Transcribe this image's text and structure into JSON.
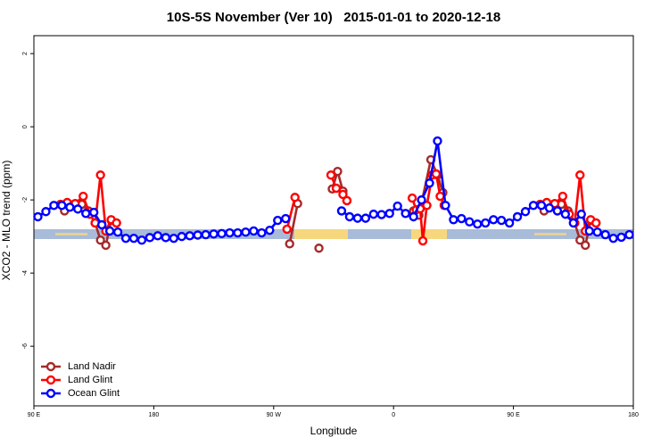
{
  "chart_data": {
    "type": "line",
    "title": "10S-5S November (Ver 10)   2015-01-01 to 2020-12-18",
    "x_label": "Longitude",
    "y_label": "XCO2 - MLO trend (ppm)",
    "xlim": [
      90,
      540
    ],
    "ylim": [
      -7.63,
      2.49
    ],
    "xticks": [
      {
        "value": 90,
        "label": "90 E"
      },
      {
        "value": 180,
        "label": "180"
      },
      {
        "value": 270,
        "label": "90 W"
      },
      {
        "value": 360,
        "label": "0"
      },
      {
        "value": 450,
        "label": "90 E"
      },
      {
        "value": 540,
        "label": "180"
      }
    ],
    "yticks": [
      2,
      0,
      -2,
      -4,
      -6
    ],
    "legend": "bottom-left",
    "series": [
      {
        "name": "Land Nadir",
        "color": "#a52a2a",
        "x": [
          113,
          120,
          126,
          131,
          136,
          140,
          144,
          148,
          152,
          null,
          282,
          288,
          null,
          304,
          null,
          314,
          318,
          322,
          325,
          null,
          375,
          379,
          388,
          393,
          397,
          null,
          473,
          480,
          486,
          491,
          496,
          500,
          504,
          508,
          512
        ],
        "values": [
          -2.3,
          -2.12,
          -2.12,
          -2.3,
          -2.63,
          -3.1,
          -3.24,
          -2.56,
          -2.63,
          null,
          -3.2,
          -2.1,
          null,
          -3.32,
          null,
          -1.7,
          -1.22,
          -1.76,
          -2.02,
          null,
          -2.3,
          -2.42,
          -0.9,
          -1.32,
          -1.8,
          null,
          -2.3,
          -2.12,
          -2.12,
          -2.3,
          -2.63,
          -3.1,
          -3.24,
          -2.56,
          -2.63
        ]
      },
      {
        "name": "Land Glint",
        "color": "#ff0000",
        "x": [
          110,
          115,
          121,
          127,
          132,
          136,
          140,
          144,
          148,
          152,
          null,
          280,
          286,
          null,
          313,
          317,
          322,
          325,
          null,
          374,
          377,
          380,
          382,
          385,
          389,
          392,
          395,
          398,
          null,
          470,
          475,
          481,
          487,
          492,
          496,
          500,
          504,
          508,
          512
        ],
        "values": [
          -2.12,
          -2.07,
          -2.1,
          -1.9,
          -2.39,
          -2.63,
          -1.32,
          -2.85,
          -2.54,
          -2.63,
          null,
          -2.8,
          -1.93,
          null,
          -1.32,
          -1.68,
          -1.85,
          -2.02,
          null,
          -1.95,
          -2.27,
          -2.24,
          -3.12,
          -2.15,
          -1.32,
          -1.29,
          -1.9,
          -2.15,
          null,
          -2.12,
          -2.07,
          -2.1,
          -1.9,
          -2.39,
          -2.63,
          -1.32,
          -2.85,
          -2.54,
          -2.63
        ]
      },
      {
        "name": "Ocean Glint",
        "color": "#0000ff",
        "x": [
          93,
          99,
          105,
          111,
          117,
          123,
          129,
          135,
          141,
          147,
          153,
          159,
          165,
          171,
          177,
          183,
          189,
          195,
          201,
          207,
          213,
          219,
          225,
          231,
          237,
          243,
          249,
          255,
          261,
          267,
          273,
          279,
          285,
          291,
          297,
          303,
          309,
          315,
          321,
          327,
          333,
          339,
          345,
          351,
          357,
          363,
          369,
          375,
          381,
          387,
          393,
          399,
          405,
          411,
          417,
          423,
          429,
          435,
          441,
          447,
          453,
          459,
          465,
          471,
          477,
          483,
          489,
          495,
          501,
          507,
          513,
          519,
          525,
          531,
          537
        ],
        "values": [
          -2.46,
          -2.32,
          -2.15,
          -2.15,
          -2.2,
          -2.25,
          -2.37,
          -2.34,
          -2.68,
          -2.85,
          -2.88,
          -3.05,
          -3.05,
          -3.1,
          -3.03,
          -2.98,
          -3.03,
          -3.05,
          -3.0,
          -2.98,
          -2.96,
          -2.95,
          -2.93,
          -2.92,
          -2.9,
          -2.9,
          -2.88,
          -2.85,
          -2.9,
          -2.83,
          -2.56,
          -2.51,
          null,
          null,
          null,
          null,
          null,
          null,
          -2.3,
          -2.46,
          -2.5,
          -2.5,
          -2.39,
          -2.4,
          -2.37,
          -2.17,
          -2.37,
          -2.46,
          -2.0,
          -1.54,
          -0.39,
          -2.15,
          -2.54,
          -2.51,
          -2.6,
          -2.66,
          -2.63,
          -2.54,
          -2.56,
          -2.63,
          -2.46,
          -2.32,
          -2.15,
          -2.15,
          -2.22,
          -2.3,
          -2.39,
          -2.63,
          -2.39,
          -2.85,
          -2.88,
          -2.95,
          -3.05,
          -3.02,
          -2.95
        ]
      }
    ]
  }
}
